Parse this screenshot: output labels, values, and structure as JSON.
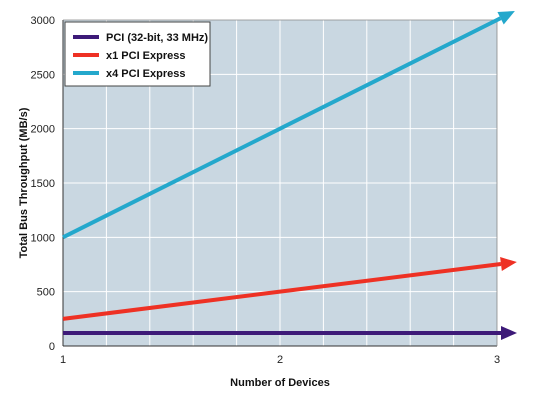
{
  "chart_data": {
    "type": "line",
    "title": "",
    "xlabel": "Number of Devices",
    "ylabel": "Total Bus Throughput (MB/s)",
    "x": [
      1,
      2,
      3
    ],
    "x_ticks": [
      "1",
      "2",
      "3"
    ],
    "y_ticks": [
      "0",
      "500",
      "1000",
      "1500",
      "2000",
      "2500",
      "3000"
    ],
    "xlim": [
      1,
      3
    ],
    "ylim": [
      0,
      3000
    ],
    "grid": true,
    "legend_position": "top-left",
    "plot_background": "#c9d7e1",
    "series": [
      {
        "name": "PCI (32-bit, 33 MHz)",
        "color": "#3d1a78",
        "values": [
          120,
          120,
          120
        ]
      },
      {
        "name": "x1 PCI Express",
        "color": "#ee3124",
        "values": [
          250,
          500,
          750
        ]
      },
      {
        "name": "x4 PCI Express",
        "color": "#24a8cc",
        "values": [
          1000,
          2000,
          3000
        ]
      }
    ]
  }
}
